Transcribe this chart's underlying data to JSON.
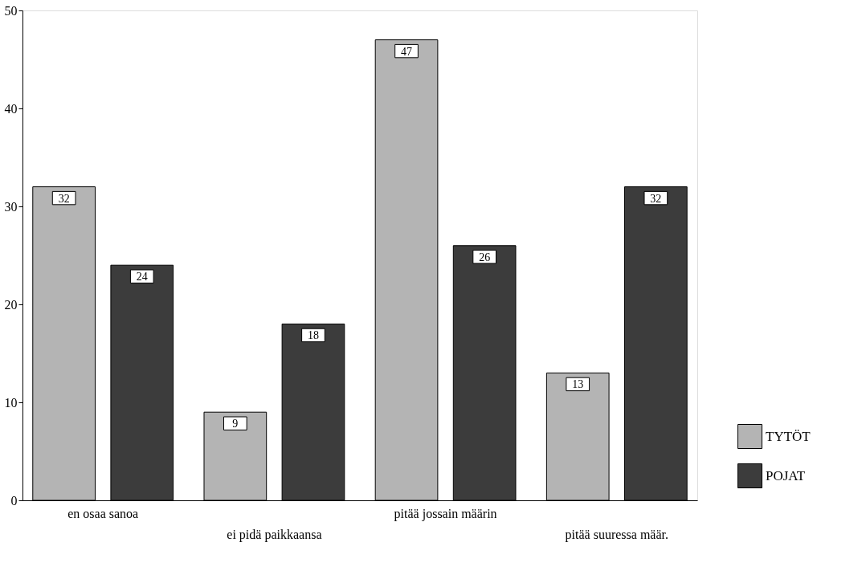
{
  "chart_data": {
    "type": "bar",
    "categories": [
      "en osaa sanoa",
      "ei pidä paikkaansa",
      "pitää jossain määrin",
      "pitää suuressa määr."
    ],
    "series": [
      {
        "name": "TYTÖT",
        "color": "#b4b4b4",
        "values": [
          32,
          9,
          47,
          13
        ]
      },
      {
        "name": "POJAT",
        "color": "#3c3c3c",
        "values": [
          24,
          18,
          26,
          32
        ]
      }
    ],
    "ylim": [
      0,
      50
    ],
    "yticks": [
      0,
      10,
      20,
      30,
      40,
      50
    ],
    "grid": false,
    "legend": "bottom right",
    "data_labels": true
  }
}
